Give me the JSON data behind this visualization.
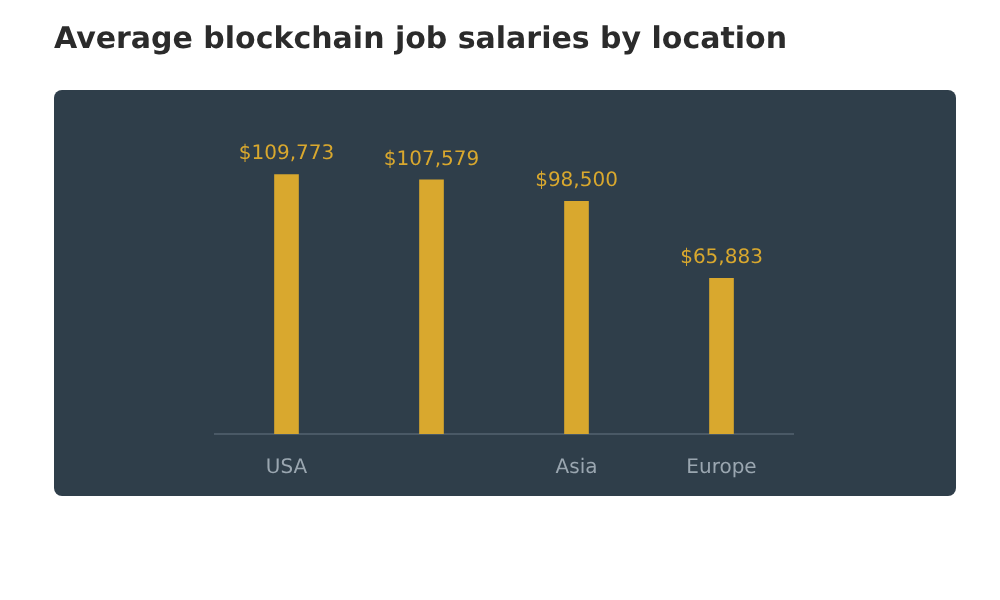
{
  "chart_data": {
    "type": "bar",
    "title": "Average blockchain job salaries by location",
    "categories": [
      "USA",
      null,
      "Asia",
      "Europe"
    ],
    "values": [
      109773,
      107579,
      98500,
      65883
    ],
    "value_labels": [
      "$109,773",
      "$107,579",
      "$98,500",
      "$65,883"
    ],
    "color": "#d9a82e"
  }
}
